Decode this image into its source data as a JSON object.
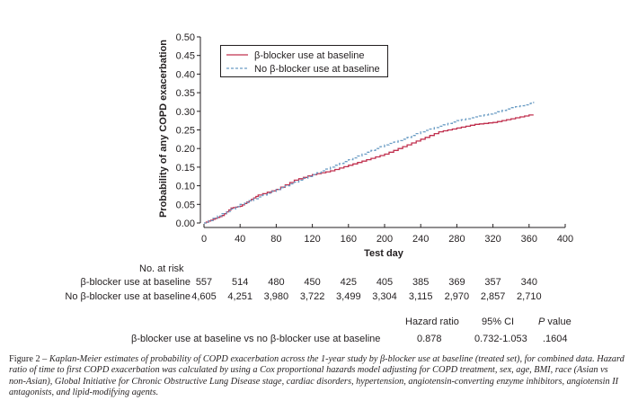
{
  "chart_data": {
    "type": "line",
    "title": "",
    "xlabel": "Test day",
    "ylabel": "Probability of any COPD exacerbation",
    "xlim": [
      0,
      400
    ],
    "ylim": [
      0,
      0.5
    ],
    "x_ticks": [
      0,
      40,
      80,
      120,
      160,
      200,
      240,
      280,
      320,
      360,
      400
    ],
    "x_tick_labels": [
      "0",
      "40",
      "80",
      "120",
      "160",
      "200",
      "240",
      "280",
      "320",
      "360",
      "400"
    ],
    "y_ticks": [
      0,
      0.05,
      0.1,
      0.15,
      0.2,
      0.25,
      0.3,
      0.35,
      0.4,
      0.45,
      0.5
    ],
    "y_tick_labels": [
      "0.00",
      "0.05",
      "0.10",
      "0.15",
      "0.20",
      "0.25",
      "0.30",
      "0.35",
      "0.40",
      "0.45",
      "0.50"
    ],
    "grid": false,
    "legend_position": "top-left",
    "series": [
      {
        "name": "β-blocker use at baseline",
        "color": "#c0304f",
        "style": "solid-step",
        "x": [
          0,
          10,
          20,
          30,
          40,
          50,
          60,
          80,
          100,
          120,
          140,
          160,
          180,
          200,
          220,
          240,
          260,
          280,
          300,
          320,
          340,
          360,
          365
        ],
        "y": [
          0,
          0.01,
          0.02,
          0.04,
          0.045,
          0.06,
          0.075,
          0.09,
          0.115,
          0.13,
          0.14,
          0.155,
          0.17,
          0.185,
          0.205,
          0.225,
          0.245,
          0.255,
          0.265,
          0.27,
          0.28,
          0.29,
          0.29
        ]
      },
      {
        "name": "No β-blocker use at baseline",
        "color": "#6a9cc4",
        "style": "dashed-step",
        "x": [
          0,
          20,
          40,
          60,
          80,
          100,
          120,
          140,
          160,
          180,
          200,
          220,
          240,
          260,
          280,
          300,
          320,
          340,
          360,
          365
        ],
        "y": [
          0,
          0.025,
          0.05,
          0.07,
          0.09,
          0.11,
          0.13,
          0.15,
          0.17,
          0.19,
          0.21,
          0.225,
          0.245,
          0.26,
          0.275,
          0.285,
          0.295,
          0.31,
          0.32,
          0.325
        ]
      }
    ]
  },
  "risk_table": {
    "heading": "No. at risk",
    "days": [
      0,
      40,
      80,
      120,
      160,
      200,
      240,
      280,
      320,
      360
    ],
    "rows": [
      {
        "label": "β-blocker use at baseline",
        "values": [
          "557",
          "514",
          "480",
          "450",
          "425",
          "405",
          "385",
          "369",
          "357",
          "340"
        ]
      },
      {
        "label": "No β-blocker use at baseline",
        "values": [
          "4,605",
          "4,251",
          "3,980",
          "3,722",
          "3,499",
          "3,304",
          "3,115",
          "2,970",
          "2,857",
          "2,710"
        ]
      }
    ]
  },
  "hazard": {
    "headers": {
      "hr": "Hazard ratio",
      "ci": "95% CI",
      "p_italic": "P",
      "p_rest": " value"
    },
    "comparison": "β-blocker use at baseline vs no β-blocker use at baseline",
    "hr": "0.878",
    "ci": "0.732-1.053",
    "p": ".1604"
  },
  "caption": {
    "figure_label": "Figure 2 – ",
    "text": "Kaplan-Meier estimates of probability of COPD exacerbation across the 1-year study by β-blocker use at baseline (treated set), for combined data. Hazard ratio of time to first COPD exacerbation was calculated by using a Cox proportional hazards model adjusting for COPD treatment, sex, age, BMI, race (Asian vs non-Asian), Global Initiative for Chronic Obstructive Lung Disease stage, cardiac disorders, hypertension, angiotensin-converting enzyme inhibitors, angiotensin II antagonists, and lipid-modifying agents."
  }
}
